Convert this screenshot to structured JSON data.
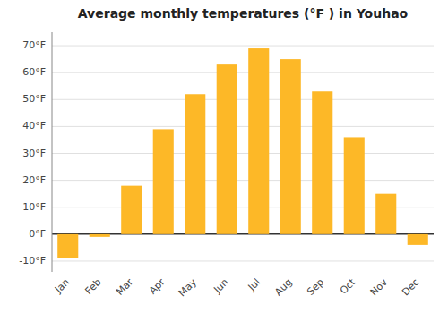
{
  "chart_data": {
    "type": "bar",
    "title": "Average monthly temperatures (°F ) in Youhao",
    "categories": [
      "Jan",
      "Feb",
      "Mar",
      "Apr",
      "May",
      "Jun",
      "Jul",
      "Aug",
      "Sep",
      "Oct",
      "Nov",
      "Dec"
    ],
    "values": [
      -9,
      -1,
      18,
      39,
      52,
      63,
      69,
      65,
      53,
      36,
      15,
      -4
    ],
    "color": "#FDB827",
    "ylim": [
      -14,
      75
    ],
    "yticks": [
      {
        "value": -10,
        "label": "-10°F"
      },
      {
        "value": 0,
        "label": "0°F"
      },
      {
        "value": 10,
        "label": "10°F"
      },
      {
        "value": 20,
        "label": "20°F"
      },
      {
        "value": 30,
        "label": "30°F"
      },
      {
        "value": 40,
        "label": "40°F"
      },
      {
        "value": 50,
        "label": "50°F"
      },
      {
        "value": 60,
        "label": "60°F"
      },
      {
        "value": 70,
        "label": "70°F"
      }
    ],
    "grid": true
  }
}
